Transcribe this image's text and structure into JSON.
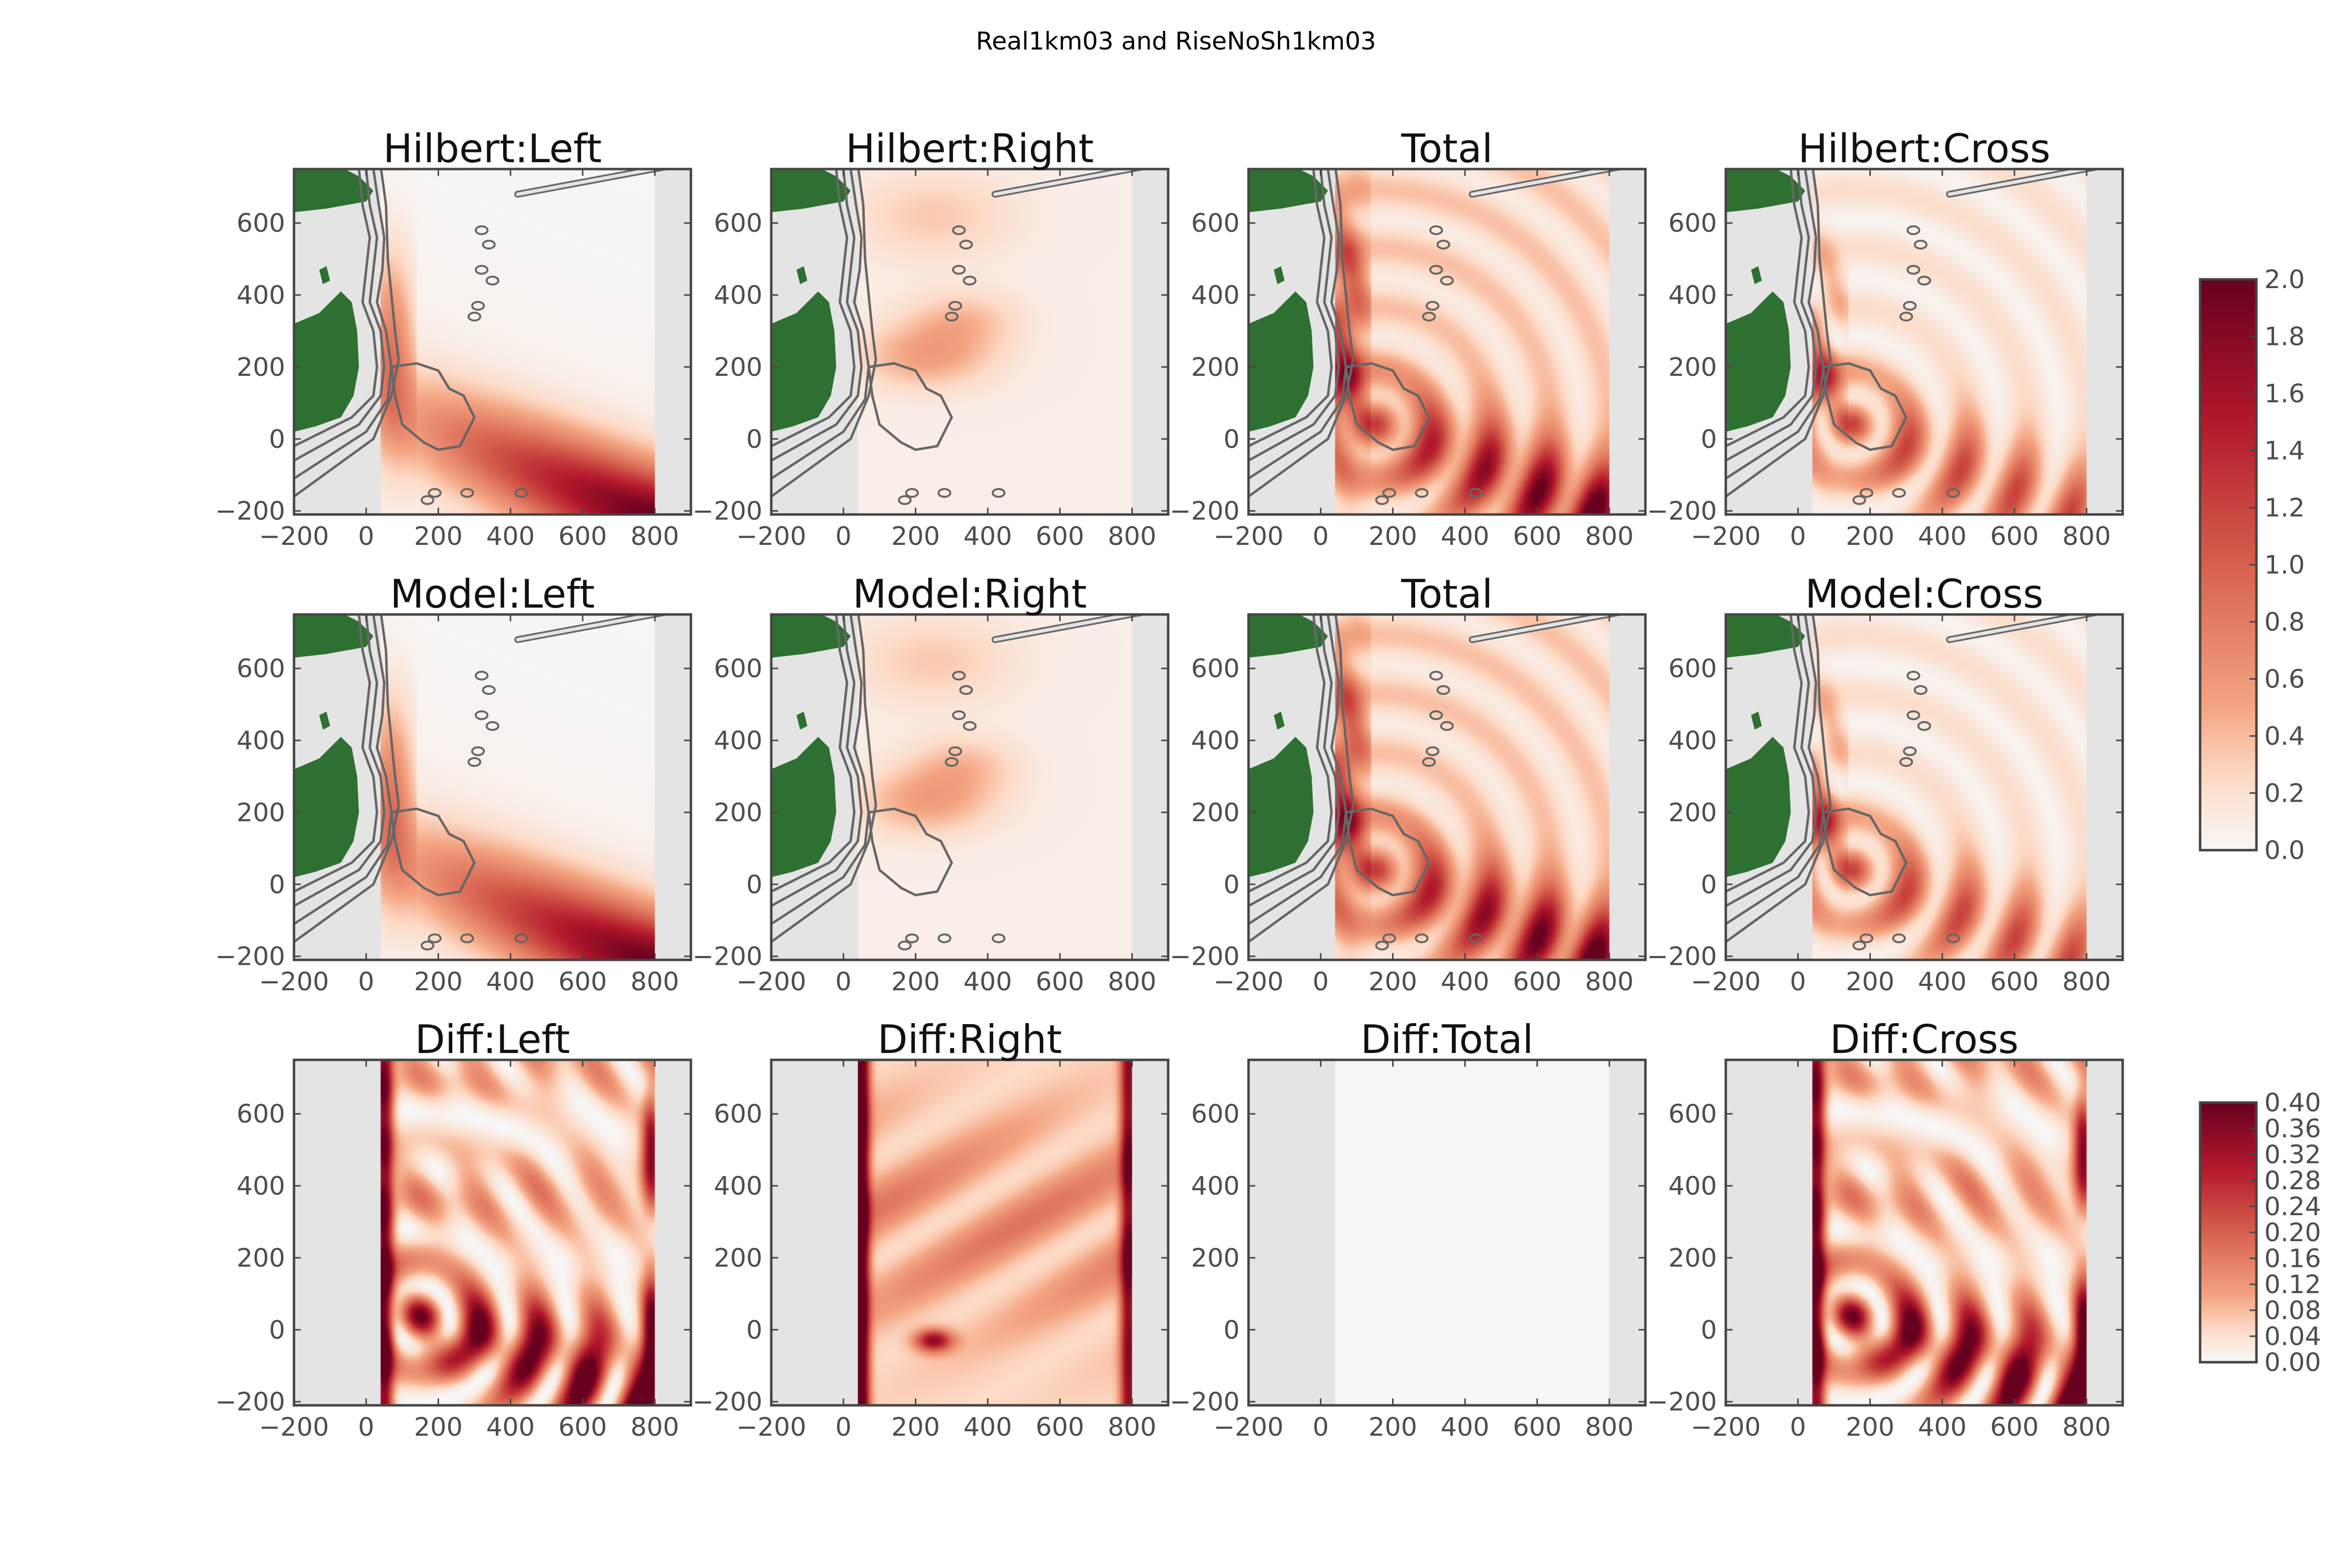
{
  "figure": {
    "suptitle": "Real1km03 and RiseNoSh1km03"
  },
  "chart_data": {
    "type": "heatmap",
    "rows": [
      {
        "row": 0,
        "colorbar": "main",
        "panels": [
          {
            "title": "Hilbert:Left",
            "pattern": "left",
            "show_map": true
          },
          {
            "title": "Hilbert:Right",
            "pattern": "right",
            "show_map": true
          },
          {
            "title": "Total",
            "pattern": "total",
            "show_map": true
          },
          {
            "title": "Hilbert:Cross",
            "pattern": "cross",
            "show_map": true
          }
        ]
      },
      {
        "row": 1,
        "colorbar": "main",
        "panels": [
          {
            "title": "Model:Left",
            "pattern": "left",
            "show_map": true
          },
          {
            "title": "Model:Right",
            "pattern": "right",
            "show_map": true
          },
          {
            "title": "Total",
            "pattern": "total",
            "show_map": true
          },
          {
            "title": "Model:Cross",
            "pattern": "cross",
            "show_map": true
          }
        ]
      },
      {
        "row": 2,
        "colorbar": "diff",
        "panels": [
          {
            "title": "Diff:Left",
            "pattern": "diffleft",
            "show_map": false
          },
          {
            "title": "Diff:Right",
            "pattern": "diffright",
            "show_map": false
          },
          {
            "title": "Diff:Total",
            "pattern": "zero",
            "show_map": false
          },
          {
            "title": "Diff:Cross",
            "pattern": "diffcross",
            "show_map": false
          }
        ]
      }
    ],
    "xlim": [
      -200,
      900
    ],
    "ylim": [
      -210,
      750
    ],
    "data_xrange": [
      40,
      800
    ],
    "xticks": [
      -200,
      0,
      200,
      400,
      600,
      800
    ],
    "yticks": [
      -200,
      0,
      200,
      400,
      600
    ],
    "xtick_labels": [
      "−200",
      "0",
      "200",
      "400",
      "600",
      "800"
    ],
    "ytick_labels": [
      "−200",
      "0",
      "200",
      "400",
      "600"
    ],
    "colormap": "RdBu_r (upper half, white to dark red)",
    "colorbars": {
      "main": {
        "vmin": 0.0,
        "vmax": 2.0,
        "ticks": [
          "0.0",
          "0.2",
          "0.4",
          "0.6",
          "0.8",
          "1.0",
          "1.2",
          "1.4",
          "1.6",
          "1.8",
          "2.0"
        ]
      },
      "diff": {
        "vmin": 0.0,
        "vmax": 0.4,
        "ticks": [
          "0.00",
          "0.04",
          "0.08",
          "0.12",
          "0.16",
          "0.20",
          "0.24",
          "0.28",
          "0.32",
          "0.36",
          "0.40"
        ]
      }
    },
    "colors": {
      "land": "#2e7031",
      "nodata": "#e4e4e4",
      "contour": "#666666",
      "cmap_low": "#f7f7f7",
      "cmap_mid": "#f4a582",
      "cmap_high": "#67001f"
    },
    "legend": "none",
    "grid": false
  }
}
